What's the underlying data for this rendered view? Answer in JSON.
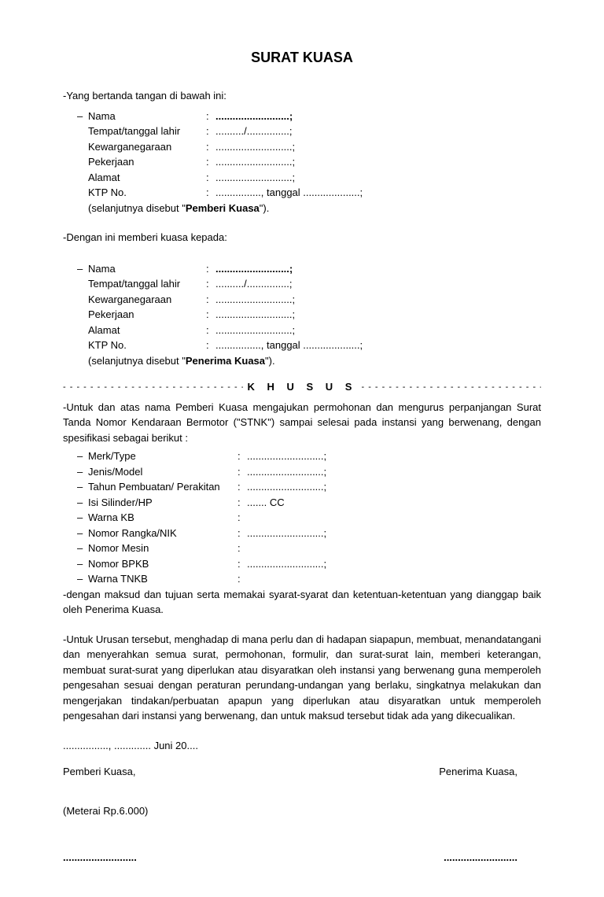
{
  "title": "SURAT KUASA",
  "intro1": "-Yang bertanda tangan di bawah ini:",
  "party1": {
    "nama_label": "Nama",
    "nama_value": "..........................;",
    "ttl_label": "Tempat/tanggal lahir",
    "ttl_value": "........../...............;",
    "kewarg_label": "Kewarganegaraan",
    "kewarg_value": "...........................;",
    "pekerjaan_label": "Pekerjaan",
    "pekerjaan_value": "...........................;",
    "alamat_label": "Alamat",
    "alamat_value": "...........................;",
    "ktp_label": "KTP No.",
    "ktp_value": "................, tanggal ....................;",
    "note_pre": "(selanjutnya disebut \"",
    "note_bold": "Pemberi Kuasa",
    "note_post": "\")."
  },
  "intro2": "-Dengan ini memberi kuasa kepada:",
  "party2": {
    "nama_label": "Nama",
    "nama_value": "..........................;",
    "ttl_label": "Tempat/tanggal lahir",
    "ttl_value": "........../...............;",
    "kewarg_label": "Kewarganegaraan",
    "kewarg_value": "...........................;",
    "pekerjaan_label": "Pekerjaan",
    "pekerjaan_value": "...........................;",
    "alamat_label": "Alamat",
    "alamat_value": "...........................;",
    "ktp_label": "KTP No.",
    "ktp_value": "................, tanggal ....................;",
    "note_pre": "(selanjutnya disebut \"",
    "note_bold": "Penerima Kuasa",
    "note_post": "\")."
  },
  "khusus": "K H U S U S",
  "khusus_dashes": "- - - - - - - - - - - - - - - - - - - - - - - - - - - - - - - - - - - - - - - - - - - - - - - - - -",
  "purpose": "-Untuk dan atas nama Pemberi Kuasa mengajukan permohonan dan mengurus perpanjangan Surat Tanda Nomor Kendaraan Bermotor (\"STNK\") sampai selesai pada instansi yang berwenang, dengan spesifikasi sebagai berikut :",
  "specs": [
    {
      "label": "Merk/Type",
      "value": "...........................;"
    },
    {
      "label": "Jenis/Model",
      "value": "...........................;"
    },
    {
      "label": "Tahun Pembuatan/ Perakitan",
      "value": "...........................;"
    },
    {
      "label": "Isi Silinder/HP",
      "value": "....... CC"
    },
    {
      "label": "Warna KB",
      "value": ""
    },
    {
      "label": "Nomor Rangka/NIK",
      "value": "...........................;"
    },
    {
      "label": "Nomor Mesin",
      "value": ""
    },
    {
      "label": "Nomor BPKB",
      "value": "...........................;"
    },
    {
      "label": "Warna TNKB",
      "value": ""
    }
  ],
  "maksud": "-dengan maksud dan tujuan serta memakai syarat-syarat dan ketentuan-ketentuan yang dianggap baik oleh Penerima Kuasa.",
  "urusan": "-Untuk Urusan tersebut, menghadap di mana perlu dan di hadapan siapapun, membuat, menandatangani dan menyerahkan semua surat, permohonan, formulir, dan surat-surat lain, memberi keterangan, membuat surat-surat yang diperlukan atau disyaratkan oleh instansi yang berwenang guna memperoleh pengesahan sesuai dengan peraturan perundang-undangan yang berlaku, singkatnya melakukan dan mengerjakan tindakan/perbuatan  apapun yang diperlukan atau disyaratkan untuk memperoleh pengesahan dari instansi yang berwenang, dan untuk maksud tersebut tidak ada yang dikecualikan.",
  "date_line": "................, ............. Juni 20....",
  "sig_left": "Pemberi Kuasa,",
  "sig_right": "Penerima Kuasa,",
  "meterai": "(Meterai Rp.6.000)",
  "sig_dots": ".........................."
}
